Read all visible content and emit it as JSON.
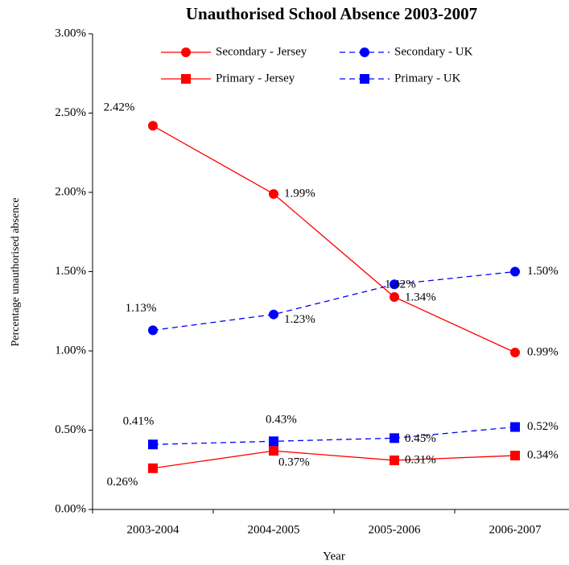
{
  "chart_data": {
    "type": "line",
    "title": "Unauthorised School Absence 2003-2007",
    "x_label": "Year",
    "y_label": "Percentage unauthorised absence",
    "categories": [
      "2003-2004",
      "2004-2005",
      "2005-2006",
      "2006-2007"
    ],
    "ylim": [
      0,
      3
    ],
    "yticks": [
      {
        "value": 0,
        "label": "0.00%"
      },
      {
        "value": 0.5,
        "label": "0.50%"
      },
      {
        "value": 1,
        "label": "1.00%"
      },
      {
        "value": 1.5,
        "label": "1.50%"
      },
      {
        "value": 2,
        "label": "2.00%"
      },
      {
        "value": 2.5,
        "label": "2.50%"
      },
      {
        "value": 3,
        "label": "3.00%"
      }
    ],
    "grid": false,
    "legend_position": "top",
    "series": [
      {
        "name": "Secondary - Jersey",
        "color": "#ff0000",
        "linestyle": "solid",
        "marker": "circle",
        "values": [
          2.42,
          1.99,
          1.34,
          0.99
        ],
        "value_labels": [
          "2.42%",
          "1.99%",
          "1.34%",
          "0.99%"
        ]
      },
      {
        "name": "Secondary - UK",
        "color": "#0000ff",
        "linestyle": "dashed",
        "marker": "circle",
        "values": [
          1.13,
          1.23,
          1.42,
          1.5
        ],
        "value_labels": [
          "1.13%",
          "1.23%",
          "1.42%",
          "1.50%"
        ]
      },
      {
        "name": "Primary - Jersey",
        "color": "#ff0000",
        "linestyle": "solid",
        "marker": "square",
        "values": [
          0.26,
          0.37,
          0.31,
          0.34
        ],
        "value_labels": [
          "0.26%",
          "0.37%",
          "0.31%",
          "0.34%"
        ]
      },
      {
        "name": "Primary - UK",
        "color": "#0000ff",
        "linestyle": "dashed",
        "marker": "square",
        "values": [
          0.41,
          0.43,
          0.45,
          0.52
        ],
        "value_labels": [
          "0.41%",
          "0.43%",
          "0.45%",
          "0.52%"
        ]
      }
    ]
  }
}
